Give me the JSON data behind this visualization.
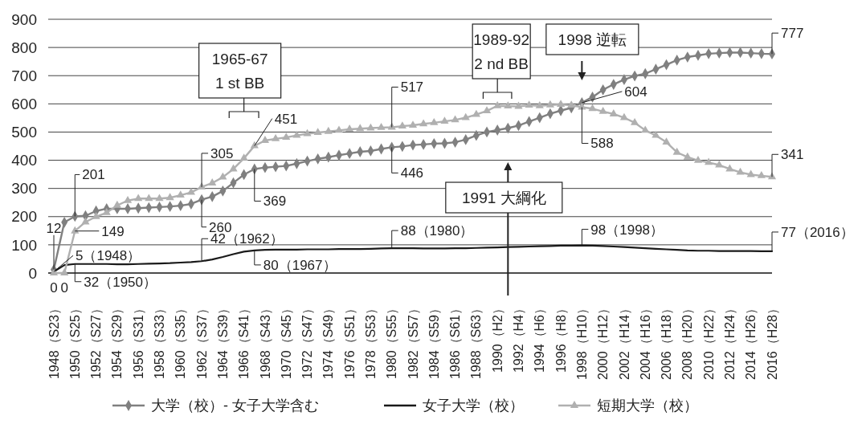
{
  "chart_data": {
    "type": "line",
    "categories": [
      "1948（S23）",
      null,
      "1950（S25）",
      null,
      "1952（S27）",
      null,
      "1954（S29）",
      null,
      "1956（S31）",
      null,
      "1958（S33）",
      null,
      "1960（S35）",
      null,
      "1962（S37）",
      null,
      "1964（S39）",
      null,
      "1966（S41）",
      null,
      "1968（S43）",
      null,
      "1970（S45）",
      null,
      "1972（S47）",
      null,
      "1974（S49）",
      null,
      "1976（S51）",
      null,
      "1978（S53）",
      null,
      "1980（S55）",
      null,
      "1982（S57）",
      null,
      "1984（S59）",
      null,
      "1986（S61）",
      null,
      "1988（S63）",
      null,
      "1990（H2）",
      null,
      "1992（H4）",
      null,
      "1994（H6）",
      null,
      "1996（H8）",
      null,
      "1998（H10）",
      null,
      "2000（H12）",
      null,
      "2002（H14）",
      null,
      "2004（H16）",
      null,
      "2006（H18）",
      null,
      "2008（H20）",
      null,
      "2010（H22）",
      null,
      "2012（H24）",
      null,
      "2014（H26）",
      null,
      "2016（H28）"
    ],
    "series": [
      {
        "name": "大学（校）- 女子大学含む",
        "color": "#808080",
        "marker": "diamond",
        "values": [
          12,
          180,
          201,
          203,
          220,
          228,
          228,
          228,
          230,
          232,
          234,
          236,
          239,
          245,
          260,
          271,
          291,
          320,
          349,
          369,
          374,
          377,
          380,
          388,
          397,
          405,
          411,
          418,
          424,
          430,
          433,
          440,
          446,
          449,
          454,
          456,
          459,
          460,
          464,
          473,
          488,
          500,
          507,
          514,
          523,
          537,
          551,
          565,
          576,
          586,
          604,
          624,
          650,
          669,
          686,
          699,
          707,
          723,
          739,
          755,
          766,
          772,
          778,
          780,
          782,
          782,
          780,
          778,
          777
        ],
        "value_labels": [
          "12",
          null,
          "201",
          null,
          null,
          null,
          null,
          null,
          null,
          null,
          null,
          null,
          null,
          null,
          "260",
          null,
          null,
          null,
          null,
          "369",
          null,
          null,
          null,
          null,
          null,
          null,
          null,
          null,
          null,
          null,
          null,
          null,
          "446",
          null,
          null,
          null,
          null,
          null,
          null,
          null,
          null,
          null,
          null,
          null,
          null,
          null,
          null,
          null,
          null,
          null,
          "604",
          null,
          null,
          null,
          null,
          null,
          null,
          null,
          null,
          null,
          null,
          null,
          null,
          null,
          null,
          null,
          null,
          null,
          "777"
        ]
      },
      {
        "name": "女子大学（校）",
        "color": "#1a1a1a",
        "marker": "none",
        "values": [
          5,
          28,
          32,
          32,
          32,
          32,
          31,
          31,
          32,
          33,
          34,
          35,
          37,
          39,
          42,
          48,
          57,
          67,
          76,
          80,
          82,
          83,
          83,
          83,
          84,
          84,
          84,
          85,
          85,
          85,
          86,
          87,
          88,
          88,
          88,
          87,
          87,
          87,
          88,
          88,
          89,
          90,
          91,
          92,
          93,
          94,
          95,
          96,
          97,
          97,
          98,
          97,
          96,
          94,
          92,
          90,
          88,
          86,
          84,
          82,
          80,
          79,
          79,
          78,
          78,
          78,
          78,
          77,
          77
        ],
        "value_labels": [
          "5（1948）",
          null,
          "32（1950）",
          null,
          null,
          null,
          null,
          null,
          null,
          null,
          null,
          null,
          null,
          null,
          "42（1962）",
          null,
          null,
          null,
          null,
          "80（1967）",
          null,
          null,
          null,
          null,
          null,
          null,
          null,
          null,
          null,
          null,
          null,
          null,
          "88（1980）",
          null,
          null,
          null,
          null,
          null,
          null,
          null,
          null,
          null,
          null,
          null,
          null,
          null,
          null,
          null,
          null,
          null,
          "98（1998）",
          null,
          null,
          null,
          null,
          null,
          null,
          null,
          null,
          null,
          null,
          null,
          null,
          null,
          null,
          null,
          null,
          null,
          "77（2016）"
        ]
      },
      {
        "name": "短期大学（校）",
        "color": "#b0b0b0",
        "marker": "triangle",
        "values": [
          0,
          0,
          149,
          181,
          200,
          214,
          240,
          257,
          264,
          264,
          264,
          267,
          276,
          286,
          305,
          319,
          340,
          369,
          407,
          451,
          470,
          476,
          481,
          488,
          494,
          498,
          502,
          506,
          510,
          512,
          514,
          516,
          517,
          521,
          524,
          529,
          533,
          538,
          543,
          551,
          562,
          575,
          593,
          592,
          591,
          595,
          593,
          596,
          598,
          595,
          588,
          583,
          573,
          564,
          551,
          533,
          506,
          488,
          464,
          428,
          411,
          399,
          392,
          383,
          369,
          357,
          349,
          345,
          341
        ],
        "value_labels": [
          "0",
          "0",
          "149",
          null,
          null,
          null,
          null,
          null,
          null,
          null,
          null,
          null,
          null,
          null,
          "305",
          null,
          null,
          null,
          null,
          "451",
          null,
          null,
          null,
          null,
          null,
          null,
          null,
          null,
          null,
          null,
          null,
          null,
          "517",
          null,
          null,
          null,
          null,
          null,
          null,
          null,
          null,
          null,
          null,
          null,
          null,
          null,
          null,
          null,
          null,
          null,
          "588",
          null,
          null,
          null,
          null,
          null,
          null,
          null,
          null,
          null,
          null,
          null,
          null,
          null,
          null,
          null,
          null,
          null,
          "341"
        ]
      }
    ],
    "ylim": [
      0,
      900
    ],
    "yticks": [
      0,
      100,
      200,
      300,
      400,
      500,
      600,
      700,
      800,
      900
    ],
    "grid": "y",
    "legend": "bottom",
    "annotations": [
      "1965-67\n1 st BB",
      "1989-92\n2 nd BB",
      "1998 逆転",
      "1991 大綱化"
    ]
  }
}
